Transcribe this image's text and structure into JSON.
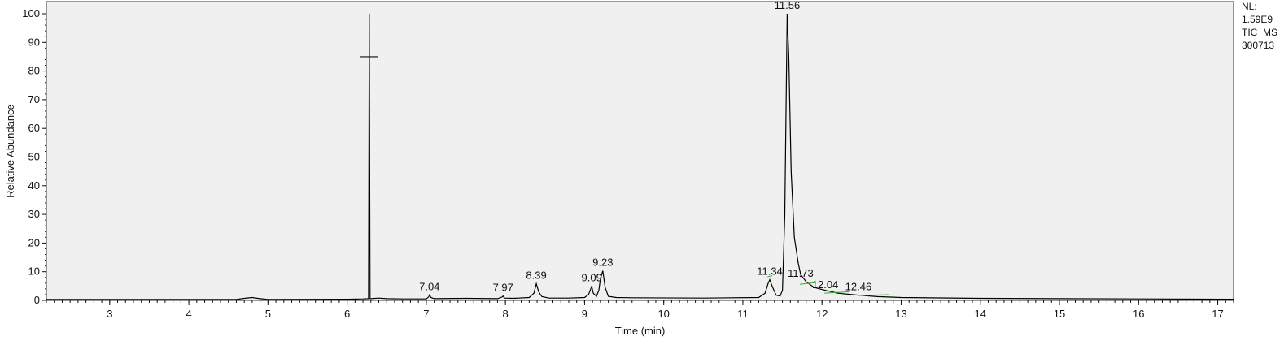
{
  "info": {
    "nl_label": "NL:",
    "nl_value": "1.59E9",
    "scan_label": "TIC  MS",
    "sample": "300713"
  },
  "chart_data": {
    "type": "line",
    "title": "",
    "xlabel": "Time (min)",
    "ylabel": "Relative Abundance",
    "xlim": [
      2.2,
      17.2
    ],
    "ylim": [
      0,
      100
    ],
    "xticks": [
      3,
      4,
      5,
      6,
      7,
      8,
      9,
      10,
      11,
      12,
      13,
      14,
      15,
      16,
      17
    ],
    "yticks": [
      0,
      10,
      20,
      30,
      40,
      50,
      60,
      70,
      80,
      90,
      100
    ],
    "grid": false,
    "background": "#f0f0f0",
    "line_color": "#000000",
    "annotation_line_color": "#3aaa3a",
    "series": [
      {
        "x": [
          2.2,
          4.6,
          4.7,
          4.8,
          4.9,
          5.0,
          6.0,
          6.2,
          6.27,
          6.28,
          6.29,
          6.3,
          6.4,
          6.5,
          6.7,
          7.0,
          7.03,
          7.04,
          7.06,
          7.1,
          7.5,
          7.9,
          7.96,
          7.97,
          7.99,
          8.1,
          8.3,
          8.36,
          8.39,
          8.42,
          8.46,
          8.55,
          8.8,
          9.0,
          9.05,
          9.08,
          9.09,
          9.11,
          9.15,
          9.18,
          9.2,
          9.23,
          9.26,
          9.3,
          9.4,
          9.6,
          10.5,
          11.2,
          11.28,
          11.32,
          11.34,
          11.37,
          11.42,
          11.47,
          11.5,
          11.53,
          11.56,
          11.58,
          11.61,
          11.65,
          11.7,
          11.73,
          11.8,
          11.9,
          12.04,
          12.2,
          12.46,
          12.7,
          13.0,
          14.0,
          15.0,
          16.0,
          17.2
        ],
        "y": [
          0.3,
          0.3,
          0.7,
          1.0,
          0.6,
          0.3,
          0.4,
          0.5,
          0.6,
          100,
          0.6,
          0.6,
          0.8,
          0.6,
          0.5,
          0.5,
          1.2,
          1.9,
          1.0,
          0.6,
          0.7,
          0.6,
          1.2,
          1.5,
          0.8,
          0.7,
          1.0,
          2.5,
          5.8,
          3.0,
          1.3,
          0.8,
          0.8,
          1.0,
          2.0,
          4.2,
          4.9,
          2.5,
          1.4,
          3.5,
          7.5,
          10.3,
          4.5,
          1.4,
          1.0,
          0.9,
          0.8,
          1.0,
          2.5,
          6.0,
          7.2,
          5.0,
          1.8,
          1.5,
          3.5,
          30,
          100,
          85,
          45,
          22,
          13,
          9,
          6.5,
          4.5,
          3.5,
          2.5,
          1.8,
          1.3,
          1.0,
          0.7,
          0.6,
          0.5,
          0.4
        ]
      }
    ],
    "peak_labels": [
      {
        "x": 7.04,
        "y": 1.9,
        "text": "7.04"
      },
      {
        "x": 7.97,
        "y": 1.5,
        "text": "7.97"
      },
      {
        "x": 8.39,
        "y": 5.8,
        "text": "8.39"
      },
      {
        "x": 9.09,
        "y": 4.9,
        "text": "9.09"
      },
      {
        "x": 9.23,
        "y": 10.3,
        "text": "9.23"
      },
      {
        "x": 11.34,
        "y": 7.2,
        "text": "11.34"
      },
      {
        "x": 11.56,
        "y": 100,
        "text": "11.56"
      },
      {
        "x": 11.73,
        "y": 6.5,
        "text": "11.73"
      },
      {
        "x": 12.04,
        "y": 2.6,
        "text": "12.04"
      },
      {
        "x": 12.46,
        "y": 1.8,
        "text": "12.46"
      }
    ],
    "marker": {
      "x": 6.28,
      "y": 85
    }
  }
}
